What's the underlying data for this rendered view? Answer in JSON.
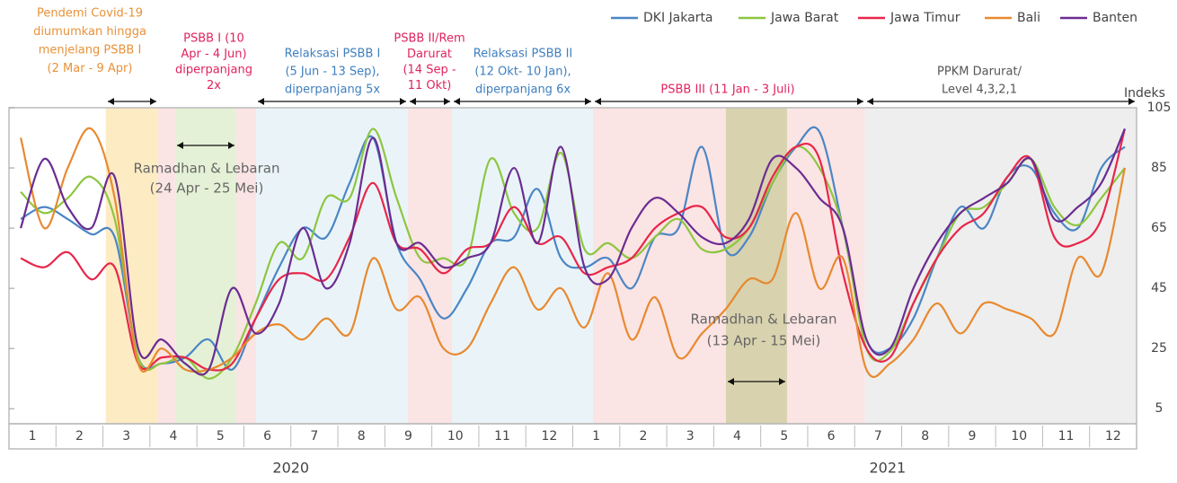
{
  "chart_data": {
    "type": "line",
    "y_label": "Indeks",
    "xlim": [
      0,
      24
    ],
    "ylim": [
      0,
      105
    ],
    "yticks": [
      5,
      25,
      45,
      65,
      85,
      105
    ],
    "xticks": [
      {
        "value": 0.5,
        "label": "1"
      },
      {
        "value": 1.5,
        "label": "2"
      },
      {
        "value": 2.5,
        "label": "3"
      },
      {
        "value": 3.5,
        "label": "4"
      },
      {
        "value": 4.5,
        "label": "5"
      },
      {
        "value": 5.5,
        "label": "6"
      },
      {
        "value": 6.5,
        "label": "7"
      },
      {
        "value": 7.5,
        "label": "8"
      },
      {
        "value": 8.5,
        "label": "9"
      },
      {
        "value": 9.5,
        "label": "10"
      },
      {
        "value": 10.5,
        "label": "11"
      },
      {
        "value": 11.5,
        "label": "12"
      },
      {
        "value": 12.5,
        "label": "1"
      },
      {
        "value": 13.5,
        "label": "2"
      },
      {
        "value": 14.5,
        "label": "3"
      },
      {
        "value": 15.5,
        "label": "4"
      },
      {
        "value": 16.5,
        "label": "5"
      },
      {
        "value": 17.5,
        "label": "6"
      },
      {
        "value": 18.5,
        "label": "7"
      },
      {
        "value": 19.5,
        "label": "8"
      },
      {
        "value": 20.5,
        "label": "9"
      },
      {
        "value": 21.5,
        "label": "10"
      },
      {
        "value": 22.5,
        "label": "11"
      },
      {
        "value": 23.5,
        "label": "12"
      }
    ],
    "year_labels": [
      {
        "value": 6,
        "label": "2020"
      },
      {
        "value": 18.7,
        "label": "2021"
      }
    ],
    "bands": [
      {
        "x0": 2.06,
        "x1": 3.17,
        "color": "#fdebc4"
      },
      {
        "x0": 3.17,
        "x1": 3.54,
        "color": "#fbe4e4"
      },
      {
        "x0": 3.54,
        "x1": 4.84,
        "color": "#e5f1d6"
      },
      {
        "x0": 4.84,
        "x1": 5.26,
        "color": "#fbe4e4"
      },
      {
        "x0": 5.26,
        "x1": 8.49,
        "color": "#eaf4f8"
      },
      {
        "x0": 8.49,
        "x1": 9.43,
        "color": "#fbe4e4"
      },
      {
        "x0": 9.43,
        "x1": 12.43,
        "color": "#eaf4f8"
      },
      {
        "x0": 12.43,
        "x1": 15.26,
        "color": "#fbe4e4"
      },
      {
        "x0": 15.26,
        "x1": 16.56,
        "color": "#d8d2ae"
      },
      {
        "x0": 16.56,
        "x1": 18.22,
        "color": "#fbe4e4"
      },
      {
        "x0": 18.22,
        "x1": 24,
        "color": "#eeeeee"
      }
    ],
    "annotations": [
      {
        "lines": [
          "Pendemi Covid-19",
          "diumumkan hingga",
          "menjelang PSBB I",
          "(2 Mar - 9 Apr)"
        ],
        "color": "#e8923a"
      },
      {
        "lines": [
          "PSBB  I (10",
          "Apr - 4 Jun)",
          "diperpanjang",
          "2x"
        ],
        "color": "#e0245e"
      },
      {
        "lines": [
          "Relaksasi PSBB I",
          "(5 Jun - 13 Sep),",
          "diperpanjang 5x"
        ],
        "color": "#3f7fbf"
      },
      {
        "lines": [
          "PSBB II/Rem",
          "Darurat",
          "(14 Sep -",
          "11 Okt)"
        ],
        "color": "#e0245e"
      },
      {
        "lines": [
          "Relaksasi PSBB II",
          "(12 Okt- 10 Jan),",
          "diperpanjang  6x"
        ],
        "color": "#3f7fbf"
      },
      {
        "lines": [
          "PSBB III (11 Jan - 3 Juli)"
        ],
        "color": "#e0245e"
      },
      {
        "lines": [
          "PPKM Darurat/",
          "Level 4,3,2,1"
        ],
        "color": "#555555"
      },
      {
        "lines": [
          "Ramadhan & Lebaran",
          "(24 Apr - 25 Mei)"
        ],
        "color": "#666666"
      },
      {
        "lines": [
          "Ramadhan & Lebaran",
          "(13  Apr - 15 Mei)"
        ],
        "color": "#666666"
      }
    ],
    "x": [
      0.25,
      0.75,
      1.25,
      1.75,
      2.25,
      2.75,
      3.25,
      3.75,
      4.25,
      4.75,
      5.25,
      5.75,
      6.25,
      6.75,
      7.25,
      7.75,
      8.25,
      8.75,
      9.25,
      9.75,
      10.25,
      10.75,
      11.25,
      11.75,
      12.25,
      12.75,
      13.25,
      13.75,
      14.25,
      14.75,
      15.25,
      15.75,
      16.25,
      16.75,
      17.25,
      17.75,
      18.25,
      18.75,
      19.25,
      19.75,
      20.25,
      20.75,
      21.25,
      21.75,
      22.25,
      22.75,
      23.25,
      23.75
    ],
    "series": [
      {
        "name": "DKI Jakarta",
        "color": "#4a86c5",
        "values": [
          68,
          72,
          68,
          63,
          62,
          22,
          20,
          22,
          28,
          18,
          35,
          52,
          65,
          62,
          80,
          95,
          60,
          48,
          35,
          45,
          60,
          62,
          78,
          55,
          52,
          55,
          45,
          62,
          65,
          92,
          58,
          62,
          80,
          92,
          97,
          65,
          28,
          25,
          35,
          55,
          72,
          65,
          82,
          85,
          70,
          65,
          85,
          92
        ]
      },
      {
        "name": "Jawa Barat",
        "color": "#8dc63f",
        "values": [
          77,
          70,
          75,
          82,
          68,
          22,
          20,
          22,
          15,
          22,
          40,
          60,
          55,
          75,
          75,
          98,
          75,
          55,
          55,
          55,
          88,
          70,
          65,
          90,
          58,
          60,
          55,
          62,
          68,
          58,
          58,
          65,
          80,
          92,
          85,
          65,
          25,
          24,
          40,
          55,
          70,
          72,
          80,
          88,
          72,
          66,
          75,
          85
        ]
      },
      {
        "name": "Jawa Timur",
        "color": "#e8264a",
        "values": [
          55,
          52,
          57,
          48,
          52,
          20,
          22,
          22,
          18,
          20,
          35,
          48,
          50,
          48,
          62,
          80,
          60,
          58,
          50,
          58,
          60,
          72,
          60,
          62,
          50,
          52,
          55,
          65,
          70,
          72,
          62,
          65,
          82,
          92,
          88,
          50,
          25,
          22,
          40,
          55,
          65,
          70,
          82,
          88,
          62,
          60,
          68,
          98
        ]
      },
      {
        "name": "Bali",
        "color": "#e8892f",
        "values": [
          95,
          65,
          85,
          98,
          75,
          20,
          25,
          18,
          18,
          22,
          30,
          33,
          28,
          35,
          30,
          55,
          38,
          42,
          25,
          25,
          40,
          52,
          38,
          45,
          32,
          50,
          28,
          42,
          22,
          30,
          38,
          48,
          48,
          70,
          45,
          55,
          18,
          20,
          28,
          40,
          30,
          40,
          38,
          35,
          30,
          55,
          50,
          85
        ]
      },
      {
        "name": "Banten",
        "color": "#6b2c91",
        "values": [
          65,
          88,
          72,
          65,
          82,
          25,
          28,
          20,
          18,
          45,
          30,
          40,
          65,
          45,
          60,
          95,
          60,
          60,
          52,
          55,
          60,
          85,
          60,
          92,
          52,
          48,
          65,
          75,
          70,
          62,
          60,
          68,
          88,
          85,
          75,
          65,
          28,
          25,
          45,
          60,
          70,
          75,
          80,
          88,
          68,
          72,
          80,
          98
        ]
      }
    ]
  }
}
